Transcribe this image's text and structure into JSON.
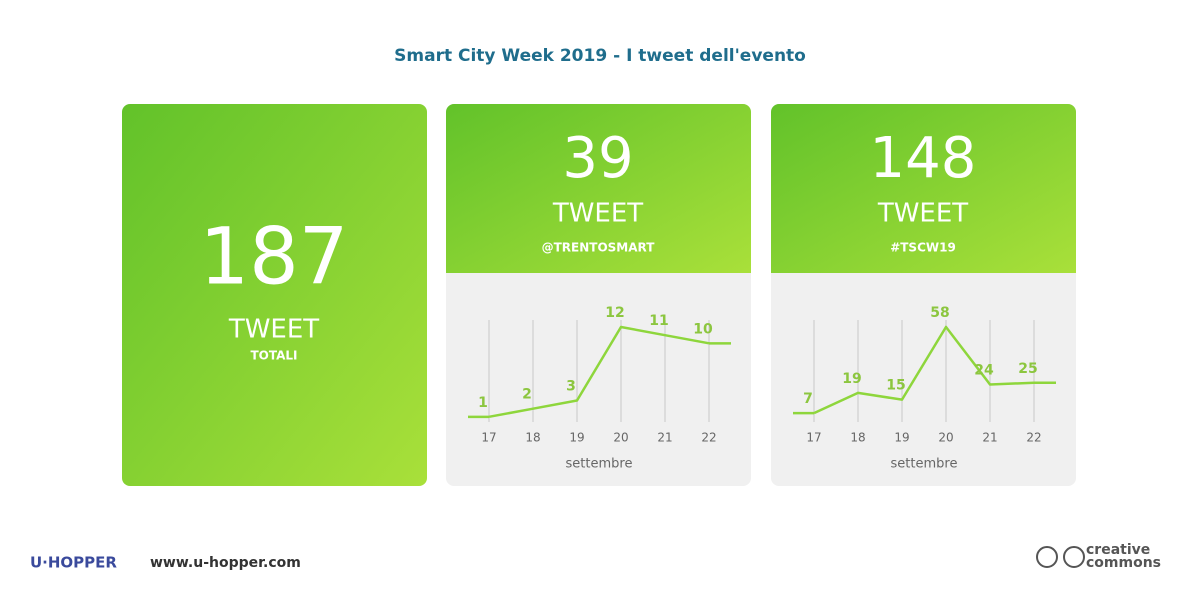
{
  "title": "Smart City Week 2019 - I tweet dell'evento",
  "cards": [
    {
      "number": 187,
      "unit": "TWEET",
      "caption": "TOTALI"
    },
    {
      "number": 39,
      "unit": "TWEET",
      "caption": "@TRENTOSMART"
    },
    {
      "number": 148,
      "unit": "TWEET",
      "caption": "#TSCW19"
    }
  ],
  "chart_data": [
    {
      "type": "line",
      "x_label": "settembre",
      "categories": [
        "17",
        "18",
        "19",
        "20",
        "21",
        "22"
      ],
      "values": [
        1,
        2,
        3,
        12,
        11,
        10
      ],
      "color": "#8ed63c"
    },
    {
      "type": "line",
      "x_label": "settembre",
      "categories": [
        "17",
        "18",
        "19",
        "20",
        "21",
        "22"
      ],
      "values": [
        7,
        19,
        15,
        58,
        24,
        25
      ],
      "color": "#8ed63c"
    }
  ],
  "footer": {
    "logo": "U·HOPPER",
    "url": "www.u-hopper.com",
    "license_top": "creative",
    "license_bottom": "commons"
  }
}
